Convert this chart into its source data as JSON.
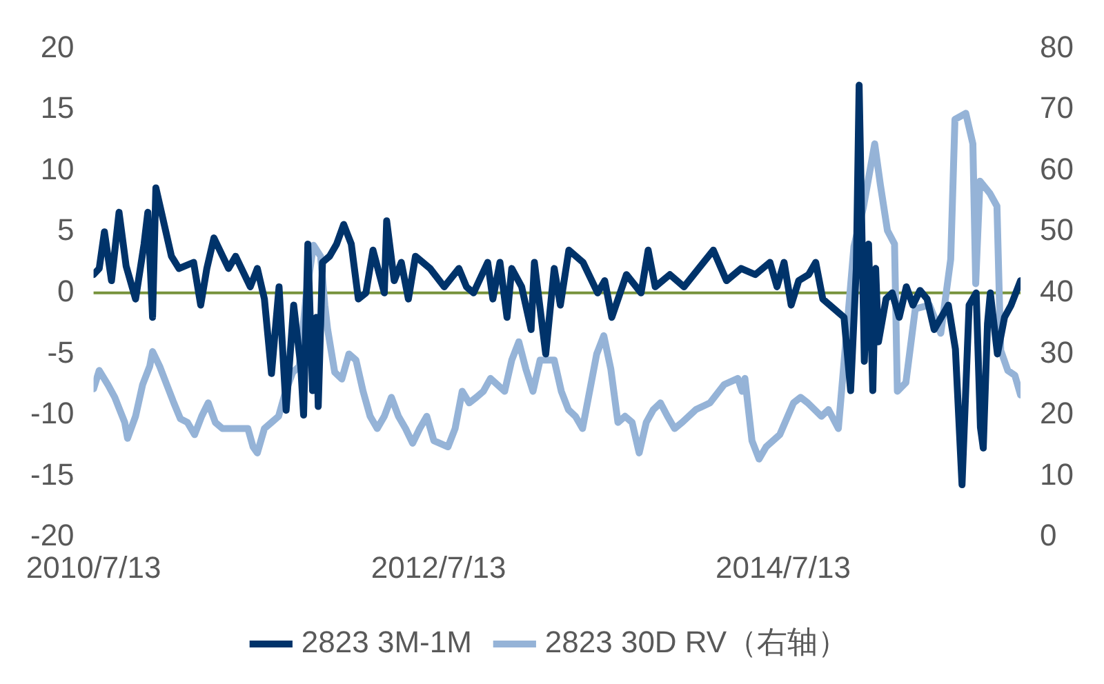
{
  "chart_data": {
    "type": "line",
    "legend": "bottom",
    "marker": "none",
    "line_style": "solid",
    "grid": false,
    "xlim": [
      "2010-07-13",
      "2015-11-28"
    ],
    "xticks": [
      {
        "value": "2010-07-13",
        "label": "2010/7/13"
      },
      {
        "value": "2012-07-13",
        "label": "2012/7/13"
      },
      {
        "value": "2014-07-13",
        "label": "2014/7/13"
      }
    ],
    "ylim": [
      -20,
      20
    ],
    "yticks": [
      -20,
      -15,
      -10,
      -5,
      0,
      5,
      10,
      15,
      20
    ],
    "ref_lines": [
      {
        "axis": "y",
        "value": 0,
        "color": "#77933c"
      }
    ],
    "y2lim": [
      0,
      80
    ],
    "y2ticks": [
      0,
      10,
      20,
      30,
      40,
      50,
      60,
      70,
      80
    ],
    "series": [
      {
        "name": "2823 3M-1M",
        "color": "#00336a",
        "x": [
          "2010-07-13",
          "2010-07-25",
          "2010-08-05",
          "2010-08-20",
          "2010-09-05",
          "2010-09-20",
          "2010-10-10",
          "2010-10-28",
          "2010-11-05",
          "2010-11-15",
          "2010-11-22",
          "2010-12-25",
          "2011-01-10",
          "2011-02-10",
          "2011-02-25",
          "2011-03-10",
          "2011-03-25",
          "2011-04-25",
          "2011-05-10",
          "2011-06-10",
          "2011-06-25",
          "2011-07-10",
          "2011-07-25",
          "2011-08-10",
          "2011-08-25",
          "2011-09-10",
          "2011-09-25",
          "2011-10-01",
          "2011-10-10",
          "2011-10-20",
          "2011-10-28",
          "2011-11-01",
          "2011-11-10",
          "2011-11-25",
          "2011-12-10",
          "2011-12-25",
          "2012-01-10",
          "2012-01-25",
          "2012-02-10",
          "2012-02-25",
          "2012-03-20",
          "2012-03-25",
          "2012-04-10",
          "2012-04-25",
          "2012-05-10",
          "2012-05-25",
          "2012-06-25",
          "2012-07-25",
          "2012-08-25",
          "2012-09-10",
          "2012-09-25",
          "2012-10-25",
          "2012-11-05",
          "2012-11-20",
          "2012-12-05",
          "2012-12-15",
          "2013-01-05",
          "2013-01-25",
          "2013-02-01",
          "2013-02-25",
          "2013-03-15",
          "2013-03-28",
          "2013-04-15",
          "2013-05-15",
          "2013-06-15",
          "2013-06-30",
          "2013-07-15",
          "2013-08-15",
          "2013-09-15",
          "2013-09-30",
          "2013-10-15",
          "2013-11-15",
          "2013-12-15",
          "2014-01-15",
          "2014-02-15",
          "2014-03-15",
          "2014-04-15",
          "2014-05-15",
          "2014-06-15",
          "2014-06-30",
          "2014-07-15",
          "2014-07-30",
          "2014-08-15",
          "2014-09-05",
          "2014-09-20",
          "2014-10-05",
          "2014-11-19",
          "2014-12-03",
          "2014-12-15",
          "2014-12-21",
          "2015-01-01",
          "2015-01-10",
          "2015-01-19",
          "2015-01-25",
          "2015-01-31",
          "2015-02-16",
          "2015-03-01",
          "2015-03-16",
          "2015-03-31",
          "2015-04-14",
          "2015-04-29",
          "2015-05-14",
          "2015-05-29",
          "2015-06-28",
          "2015-07-13",
          "2015-07-27",
          "2015-08-11",
          "2015-08-26",
          "2015-09-04",
          "2015-09-10",
          "2015-09-19",
          "2015-09-25",
          "2015-10-10",
          "2015-10-25",
          "2015-11-08",
          "2015-11-28"
        ],
        "values": [
          1.5,
          2,
          5,
          1,
          6.6,
          2.2,
          -0.5,
          4,
          6.6,
          -2,
          8.6,
          3,
          2,
          2.5,
          -1,
          2,
          4.5,
          2,
          3,
          0.5,
          2,
          -0.5,
          -6.6,
          0.5,
          -9.6,
          -1,
          -6,
          -10,
          4,
          -8,
          -2,
          -9.3,
          2.5,
          3,
          4,
          5.6,
          4,
          -0.5,
          0,
          3.5,
          0,
          5.9,
          1,
          2.5,
          -0.5,
          3,
          2,
          0.5,
          2,
          0.5,
          0,
          2.5,
          -0.5,
          2.5,
          -2,
          2,
          0.5,
          -3,
          2.5,
          -5,
          2,
          -1,
          3.5,
          2.5,
          0,
          1,
          -2,
          1.5,
          0,
          3.5,
          0.5,
          1.5,
          0.5,
          2,
          3.5,
          1,
          2,
          1.5,
          2.5,
          0.5,
          2.5,
          -1,
          1,
          1.5,
          2.5,
          -0.5,
          -2,
          -8,
          2,
          17,
          -5.6,
          4,
          -8,
          2,
          -4,
          -0.5,
          0,
          -2,
          0.5,
          -1,
          0.2,
          -0.5,
          -3,
          -1,
          -4.6,
          -15.7,
          -1,
          0,
          -11,
          -12.7,
          -2.5,
          0,
          -5,
          -2,
          -1,
          1
        ]
      },
      {
        "name": "2823 30D RV（右轴）",
        "color": "#95b3d7",
        "axis": "y2",
        "x": [
          "2010-07-13",
          "2010-07-25",
          "2010-08-13",
          "2010-08-27",
          "2010-09-17",
          "2010-09-23",
          "2010-10-10",
          "2010-10-25",
          "2010-11-09",
          "2010-11-15",
          "2010-11-30",
          "2010-12-15",
          "2010-12-30",
          "2011-01-13",
          "2011-01-28",
          "2011-02-12",
          "2011-02-27",
          "2011-03-13",
          "2011-03-28",
          "2011-04-12",
          "2011-05-12",
          "2011-06-05",
          "2011-06-16",
          "2011-06-25",
          "2011-07-10",
          "2011-07-25",
          "2011-08-09",
          "2011-08-24",
          "2011-09-08",
          "2011-09-22",
          "2011-10-07",
          "2011-10-22",
          "2011-11-06",
          "2011-11-15",
          "2011-11-21",
          "2011-12-06",
          "2011-12-21",
          "2012-01-05",
          "2012-01-20",
          "2012-02-04",
          "2012-02-19",
          "2012-03-05",
          "2012-03-20",
          "2012-04-04",
          "2012-04-19",
          "2012-05-04",
          "2012-05-19",
          "2012-06-03",
          "2012-06-18",
          "2012-07-03",
          "2012-08-02",
          "2012-08-17",
          "2012-09-01",
          "2012-09-16",
          "2012-10-01",
          "2012-10-16",
          "2012-10-31",
          "2012-11-30",
          "2012-12-15",
          "2012-12-30",
          "2013-01-14",
          "2013-01-29",
          "2013-02-13",
          "2013-03-15",
          "2013-03-30",
          "2013-04-14",
          "2013-04-29",
          "2013-05-14",
          "2013-06-13",
          "2013-06-28",
          "2013-07-13",
          "2013-07-28",
          "2013-08-12",
          "2013-08-27",
          "2013-09-11",
          "2013-09-26",
          "2013-10-11",
          "2013-10-26",
          "2013-11-10",
          "2013-11-25",
          "2013-12-11",
          "2014-01-09",
          "2014-02-08",
          "2014-03-10",
          "2014-04-08",
          "2014-04-17",
          "2014-04-23",
          "2014-05-08",
          "2014-05-23",
          "2014-06-07",
          "2014-07-06",
          "2014-08-04",
          "2014-08-19",
          "2014-09-03",
          "2014-10-02",
          "2014-10-17",
          "2014-11-07",
          "2014-12-10",
          "2014-12-30",
          "2015-01-23",
          "2015-02-04",
          "2015-02-19",
          "2015-03-06",
          "2015-03-12",
          "2015-03-30",
          "2015-04-19",
          "2015-05-19",
          "2015-06-12",
          "2015-07-03",
          "2015-07-12",
          "2015-08-04",
          "2015-08-19",
          "2015-08-25",
          "2015-09-03",
          "2015-09-24",
          "2015-10-09",
          "2015-10-17",
          "2015-11-01",
          "2015-11-16",
          "2015-11-28"
        ],
        "values": [
          24.3,
          27.3,
          24.9,
          22.9,
          18.8,
          16.2,
          19.8,
          25,
          28,
          30.4,
          28,
          25,
          22,
          19.4,
          18.8,
          16.8,
          19.8,
          22,
          18.8,
          17.8,
          17.8,
          17.8,
          14.8,
          13.8,
          17.8,
          18.8,
          19.8,
          23.9,
          27,
          28,
          40,
          47.8,
          46,
          38,
          34,
          27,
          25.9,
          30,
          29,
          23.9,
          19.8,
          17.8,
          19.8,
          22.9,
          19.8,
          17.8,
          15.4,
          17.8,
          19.8,
          15.8,
          14.8,
          17.8,
          23.9,
          22,
          22.9,
          23.9,
          26,
          23.9,
          29,
          32,
          27.5,
          23.9,
          29,
          29,
          23.9,
          20.9,
          19.8,
          17.8,
          30,
          33,
          27.5,
          18.8,
          19.8,
          18.8,
          13.8,
          18.8,
          20.9,
          22,
          19.8,
          17.8,
          18.8,
          20.9,
          22,
          25,
          26,
          23.9,
          26,
          15.8,
          12.8,
          14.8,
          16.8,
          22,
          22.9,
          22,
          19.8,
          20.9,
          17.8,
          47.6,
          54,
          64.4,
          57.7,
          50.2,
          48,
          23.9,
          25.3,
          37.4,
          38,
          33.4,
          45.5,
          68.4,
          69.4,
          64.4,
          41.5,
          58.3,
          56.3,
          54.2,
          30.6,
          27.3,
          26.5,
          23.3
        ]
      }
    ]
  }
}
